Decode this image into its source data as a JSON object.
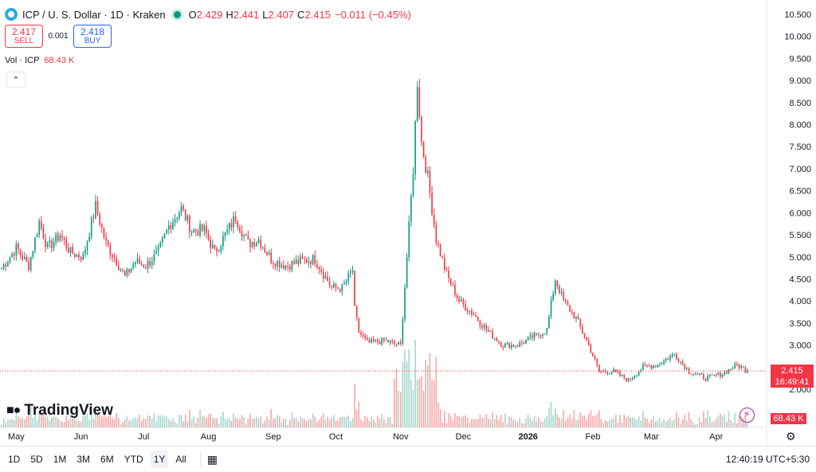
{
  "header": {
    "symbol": "ICP / U. S. Dollar · 1D · Kraken",
    "o_label": "O",
    "o_value": "2.429",
    "h_label": "H",
    "h_value": "2.441",
    "l_label": "L",
    "l_value": "2.407",
    "c_label": "C",
    "c_value": "2.415",
    "change": "−0.011 (−0.45%)"
  },
  "trade": {
    "sell_price": "2.417",
    "sell_label": "SELL",
    "spread": "0.001",
    "buy_price": "2.418",
    "buy_label": "BUY"
  },
  "volume": {
    "label": "Vol · ICP",
    "value": "68.43 K"
  },
  "branding": {
    "name": "TradingView"
  },
  "price_label": {
    "price": "2.415",
    "countdown": "16:49:41"
  },
  "volume_label": "68.43 K",
  "ranges": [
    "1D",
    "5D",
    "1M",
    "3M",
    "6M",
    "YTD",
    "1Y",
    "All"
  ],
  "active_range": "1Y",
  "clock": "12:40:19 UTC+5:30",
  "colors": {
    "up": "#089981",
    "down": "#f23645",
    "up_vol": "#a7d7cf",
    "down_vol": "#f7a9a7"
  },
  "icons": [
    "icp-logo-icon",
    "market-open-icon",
    "chevron-up-icon",
    "tradingview-logo-icon",
    "lightning-icon",
    "gear-icon",
    "calendar-icon"
  ],
  "chart_data": {
    "type": "candlestick",
    "title": "ICP / U. S. Dollar · 1D · Kraken",
    "ylim": [
      1.5,
      10.5
    ],
    "y_ticks": [
      2.0,
      2.5,
      3.0,
      3.5,
      4.0,
      4.5,
      5.0,
      5.5,
      6.0,
      6.5,
      7.0,
      7.5,
      8.0,
      8.5,
      9.0,
      9.5,
      10.0,
      10.5
    ],
    "y_tick_labels": [
      "2.000",
      "2.500",
      "3.000",
      "3.500",
      "4.000",
      "4.500",
      "5.000",
      "5.500",
      "6.000",
      "6.500",
      "7.000",
      "7.500",
      "8.000",
      "8.500",
      "9.000",
      "9.500",
      "10.000",
      "10.500"
    ],
    "x_tick_labels": [
      "May",
      "Jun",
      "Jul",
      "Aug",
      "Sep",
      "Oct",
      "Nov",
      "Dec",
      "2026",
      "Feb",
      "Mar",
      "Apr"
    ],
    "x_range": [
      "2025-04-24",
      "2026-04-16"
    ],
    "last_price": 2.415,
    "close_trend": [
      [
        "2025-04-24",
        4.75
      ],
      [
        "2025-05-01",
        5.2
      ],
      [
        "2025-05-07",
        4.8
      ],
      [
        "2025-05-12",
        5.8
      ],
      [
        "2025-05-16",
        5.2
      ],
      [
        "2025-05-22",
        5.5
      ],
      [
        "2025-05-27",
        5.1
      ],
      [
        "2025-06-02",
        5.0
      ],
      [
        "2025-06-08",
        6.15
      ],
      [
        "2025-06-13",
        5.3
      ],
      [
        "2025-06-18",
        4.9
      ],
      [
        "2025-06-22",
        4.55
      ],
      [
        "2025-06-27",
        4.9
      ],
      [
        "2025-07-02",
        4.8
      ],
      [
        "2025-07-08",
        5.1
      ],
      [
        "2025-07-13",
        5.7
      ],
      [
        "2025-07-19",
        6.1
      ],
      [
        "2025-07-24",
        5.6
      ],
      [
        "2025-07-30",
        5.6
      ],
      [
        "2025-08-04",
        5.1
      ],
      [
        "2025-08-09",
        5.5
      ],
      [
        "2025-08-14",
        5.9
      ],
      [
        "2025-08-20",
        5.3
      ],
      [
        "2025-08-25",
        5.4
      ],
      [
        "2025-08-31",
        4.95
      ],
      [
        "2025-09-07",
        4.8
      ],
      [
        "2025-09-14",
        4.9
      ],
      [
        "2025-09-21",
        4.95
      ],
      [
        "2025-09-29",
        4.3
      ],
      [
        "2025-10-04",
        4.3
      ],
      [
        "2025-10-09",
        4.7
      ],
      [
        "2025-10-10",
        3.8
      ],
      [
        "2025-10-12",
        3.3
      ],
      [
        "2025-10-16",
        3.05
      ],
      [
        "2025-10-24",
        3.1
      ],
      [
        "2025-11-01",
        3.0
      ],
      [
        "2025-11-04",
        5.0
      ],
      [
        "2025-11-07",
        7.0
      ],
      [
        "2025-11-09",
        9.0
      ],
      [
        "2025-11-11",
        7.6
      ],
      [
        "2025-11-14",
        6.8
      ],
      [
        "2025-11-18",
        5.4
      ],
      [
        "2025-11-23",
        4.6
      ],
      [
        "2025-11-29",
        4.0
      ],
      [
        "2025-12-06",
        3.7
      ],
      [
        "2025-12-13",
        3.3
      ],
      [
        "2025-12-20",
        3.0
      ],
      [
        "2025-12-27",
        3.0
      ],
      [
        "2026-01-04",
        3.2
      ],
      [
        "2026-01-10",
        3.35
      ],
      [
        "2026-01-14",
        4.5
      ],
      [
        "2026-01-18",
        4.0
      ],
      [
        "2026-01-24",
        3.6
      ],
      [
        "2026-01-30",
        3.0
      ],
      [
        "2026-02-04",
        2.4
      ],
      [
        "2026-02-11",
        2.4
      ],
      [
        "2026-02-18",
        2.2
      ],
      [
        "2026-02-25",
        2.5
      ],
      [
        "2026-03-04",
        2.55
      ],
      [
        "2026-03-12",
        2.8
      ],
      [
        "2026-03-19",
        2.4
      ],
      [
        "2026-03-27",
        2.25
      ],
      [
        "2026-04-04",
        2.35
      ],
      [
        "2026-04-11",
        2.55
      ],
      [
        "2026-04-16",
        2.415
      ]
    ]
  }
}
